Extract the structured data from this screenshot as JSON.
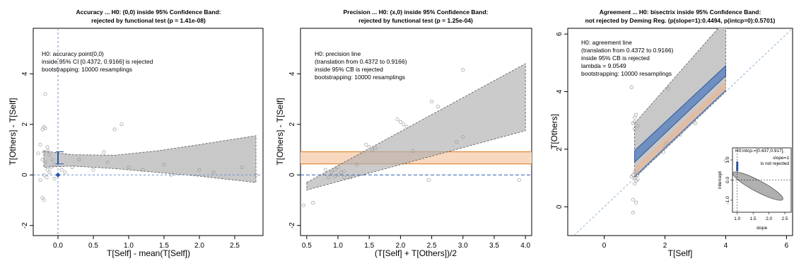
{
  "chart_data": [
    {
      "type": "scatter",
      "title": "Accuracy ... H0: (0,0) inside 95% Confidence Band:",
      "subtitle": "rejected by functional test (p = 1.41e-08)",
      "xlabel": "T[Self] - mean(T[Self])",
      "ylabel": "T[Others] - T[Self]",
      "xlim": [
        -0.35,
        2.9
      ],
      "ylim": [
        -2.4,
        5.8
      ],
      "xticks": [
        "0.0",
        "0.5",
        "1.0",
        "1.5",
        "2.0",
        "2.5"
      ],
      "xtick_values": [
        0,
        0.5,
        1,
        1.5,
        2,
        2.5
      ],
      "yticks": [
        "-2",
        "0",
        "2",
        "4"
      ],
      "ytick_values": [
        -2,
        0,
        2,
        4
      ],
      "annotation": [
        "H0: accuracy point(0,0)",
        "inside 95% CI [0.4372, 0.9166] is rejected",
        "bootstrapping: 10000 resamplings"
      ],
      "band_x": [
        -0.2,
        0.2,
        0.8,
        1.4,
        2.0,
        2.8
      ],
      "band_upper": [
        0.95,
        0.8,
        0.78,
        0.95,
        1.2,
        1.55
      ],
      "band_lower": [
        0.3,
        0.35,
        0.25,
        0.1,
        -0.05,
        -0.3
      ],
      "ci_segment": {
        "x": 0,
        "y_low": 0.4372,
        "y_high": 0.9166
      },
      "h0_point": [
        0,
        0
      ],
      "points": [
        [
          -0.25,
          1.2
        ],
        [
          -0.22,
          1.8
        ],
        [
          -0.2,
          1.9
        ],
        [
          -0.18,
          1.85
        ],
        [
          -0.15,
          1.1
        ],
        [
          -0.2,
          0.9
        ],
        [
          -0.22,
          0.6
        ],
        [
          -0.18,
          0.5
        ],
        [
          -0.15,
          0.2
        ],
        [
          -0.12,
          0.1
        ],
        [
          -0.1,
          0.3
        ],
        [
          -0.2,
          0.0
        ],
        [
          -0.25,
          -0.2
        ],
        [
          -0.22,
          -0.9
        ],
        [
          -0.2,
          -1.0
        ],
        [
          -0.18,
          3.2
        ],
        [
          -0.12,
          0.8
        ],
        [
          -0.08,
          0.6
        ],
        [
          -0.05,
          0.4
        ],
        [
          0.05,
          0.2
        ],
        [
          0.1,
          0.1
        ],
        [
          0.2,
          0.3
        ],
        [
          0.5,
          0.2
        ],
        [
          0.7,
          0.5
        ],
        [
          0.8,
          1.8
        ],
        [
          0.9,
          2.0
        ],
        [
          1.0,
          0.3
        ],
        [
          1.2,
          0.2
        ],
        [
          1.5,
          0.4
        ],
        [
          1.6,
          0.0
        ],
        [
          2.0,
          0.2
        ],
        [
          2.2,
          0.1
        ],
        [
          2.6,
          0.3
        ],
        [
          2.8,
          0.0
        ],
        [
          -0.05,
          -0.15
        ],
        [
          0.3,
          0.6
        ],
        [
          0.65,
          0.9
        ],
        [
          -0.28,
          0.85
        ],
        [
          -0.16,
          -0.1
        ],
        [
          -0.14,
          0.95
        ]
      ]
    },
    {
      "type": "scatter",
      "title": "Precision ... H0: (x,0) inside 95% Confidence Band:",
      "subtitle": "rejected by functional test (p = 1.25e-04)",
      "xlabel": "(T[Self] + T[Others])/2",
      "ylabel": "T[Others] - T[Self]",
      "xlim": [
        0.4,
        4.1
      ],
      "ylim": [
        -2.4,
        5.8
      ],
      "xticks": [
        "0.5",
        "1.0",
        "1.5",
        "2.0",
        "2.5",
        "3.0",
        "3.5",
        "4.0"
      ],
      "xtick_values": [
        0.5,
        1,
        1.5,
        2,
        2.5,
        3,
        3.5,
        4
      ],
      "yticks": [
        "-2",
        "0",
        "2",
        "4"
      ],
      "ytick_values": [
        -2,
        0,
        2,
        4
      ],
      "annotation": [
        "H0: precision line",
        "(translation from 0.4372 to 0.9166)",
        "inside 95% CB is rejected",
        "bootstrapping: 10000 resamplings"
      ],
      "band_x": [
        0.5,
        4.0
      ],
      "band_upper": [
        -0.3,
        4.4
      ],
      "band_lower": [
        -0.6,
        1.75
      ],
      "orange_band": [
        0.4372,
        0.9166
      ],
      "zero_line": 0,
      "points": [
        [
          0.45,
          -1.2
        ],
        [
          0.6,
          -1.1
        ],
        [
          0.8,
          0.2
        ],
        [
          0.9,
          0.1
        ],
        [
          0.95,
          -0.05
        ],
        [
          1.0,
          0.0
        ],
        [
          1.05,
          0.1
        ],
        [
          1.1,
          -0.1
        ],
        [
          1.0,
          0.3
        ],
        [
          0.95,
          0.2
        ],
        [
          1.5,
          1.1
        ],
        [
          1.55,
          1.0
        ],
        [
          1.45,
          1.2
        ],
        [
          1.6,
          1.05
        ],
        [
          2.0,
          2.1
        ],
        [
          2.05,
          2.0
        ],
        [
          1.95,
          2.2
        ],
        [
          2.1,
          1.9
        ],
        [
          2.5,
          2.9
        ],
        [
          2.6,
          2.7
        ],
        [
          2.45,
          -0.2
        ],
        [
          2.9,
          1.3
        ],
        [
          3.0,
          4.15
        ],
        [
          3.0,
          1.5
        ],
        [
          3.9,
          -0.2
        ],
        [
          2.2,
          0.95
        ],
        [
          1.3,
          0.4
        ],
        [
          0.85,
          -0.1
        ],
        [
          1.2,
          -0.1
        ],
        [
          1.1,
          0.15
        ]
      ]
    },
    {
      "type": "scatter",
      "title": "Agreement ... H0: bisectrix inside 95% Confidence Band:",
      "subtitle": "not rejected by Deming Reg. (p(slope=1):0.4494, p(intcp=0):0.5701)",
      "xlabel": "T[Self]",
      "ylabel": "T[Others]",
      "xlim": [
        -1.2,
        6.2
      ],
      "ylim": [
        -1.0,
        6.2
      ],
      "xticks": [
        "0",
        "2",
        "4",
        "6"
      ],
      "xtick_values": [
        0,
        2,
        4,
        6
      ],
      "yticks": [
        "0",
        "2",
        "4",
        "6"
      ],
      "ytick_values": [
        0,
        2,
        4,
        6
      ],
      "annotation": [
        "H0: agreement line",
        "(translation from 0.4372 to 0.9166)",
        "inside 95% CB is rejected",
        "lambda = 9.0549",
        "bootstrapping: 10000 resamplings"
      ],
      "grey_band": {
        "x": [
          1.0,
          4.0
        ],
        "upper": [
          2.9,
          6.5
        ],
        "lower": [
          1.0,
          4.0
        ]
      },
      "blue_band": {
        "x": [
          1.0,
          4.0
        ],
        "upper": [
          1.95,
          4.9
        ],
        "lower": [
          1.55,
          4.55
        ]
      },
      "points": [
        [
          1.0,
          1.0
        ],
        [
          0.95,
          1.1
        ],
        [
          1.05,
          0.9
        ],
        [
          1.0,
          0.8
        ],
        [
          0.9,
          1.05
        ],
        [
          1.1,
          1.1
        ],
        [
          0.95,
          0.25
        ],
        [
          1.05,
          0.15
        ],
        [
          1.0,
          3.1
        ],
        [
          0.95,
          2.9
        ],
        [
          1.05,
          3.2
        ],
        [
          1.1,
          2.8
        ],
        [
          1.0,
          2.7
        ],
        [
          1.0,
          2.95
        ],
        [
          2.0,
          2.05
        ],
        [
          1.95,
          1.9
        ],
        [
          2.05,
          2.2
        ],
        [
          2.5,
          2.5
        ],
        [
          3.0,
          2.9
        ],
        [
          4.0,
          1.6
        ],
        [
          2.1,
          4.1
        ],
        [
          0.9,
          4.15
        ],
        [
          0.95,
          -0.2
        ],
        [
          1.0,
          1.2
        ],
        [
          1.1,
          0.95
        ]
      ],
      "inset": {
        "title": "H0:intcp.=[0.437,0.917],",
        "lines": [
          "slope=1",
          "is not rejected"
        ],
        "xlabel": "slope",
        "ylabel": "intercept",
        "xticks": [
          "1.0",
          "1.5",
          "2.0",
          "2.5"
        ],
        "xtick_values": [
          1.0,
          1.5,
          2.0,
          2.5
        ],
        "yticks": [
          "-1.0",
          "0.0",
          "1.0"
        ],
        "ytick_values": [
          -1.0,
          0.0,
          1.0
        ]
      }
    }
  ]
}
